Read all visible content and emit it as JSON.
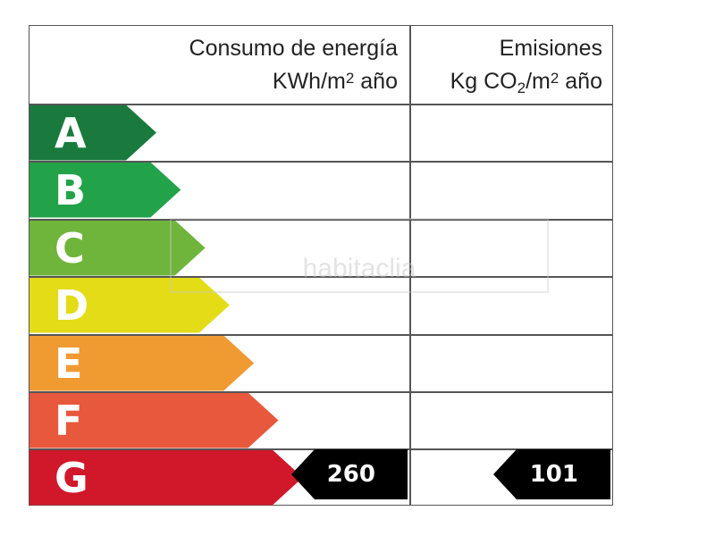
{
  "header": {
    "consumption_line1": "Consumo de energía",
    "consumption_line2_pre": "KWh/m",
    "consumption_line2_sup": "2",
    "consumption_line2_post": " año",
    "emissions_line1": "Emisiones",
    "emissions_line2_pre": "Kg CO",
    "emissions_line2_sub": "2",
    "emissions_line2_mid": "/m",
    "emissions_line2_sup": "2",
    "emissions_line2_post": " año"
  },
  "ratings": [
    {
      "letter": "A",
      "color": "#1a7a3e"
    },
    {
      "letter": "B",
      "color": "#22a34a"
    },
    {
      "letter": "C",
      "color": "#6fb53c"
    },
    {
      "letter": "D",
      "color": "#e3dc17"
    },
    {
      "letter": "E",
      "color": "#f09a32"
    },
    {
      "letter": "F",
      "color": "#e8583c"
    },
    {
      "letter": "G",
      "color": "#d1182b"
    }
  ],
  "consumption": {
    "rating": "G",
    "value": "260"
  },
  "emissions": {
    "rating": "G",
    "value": "101"
  },
  "watermark": "habitaclia"
}
